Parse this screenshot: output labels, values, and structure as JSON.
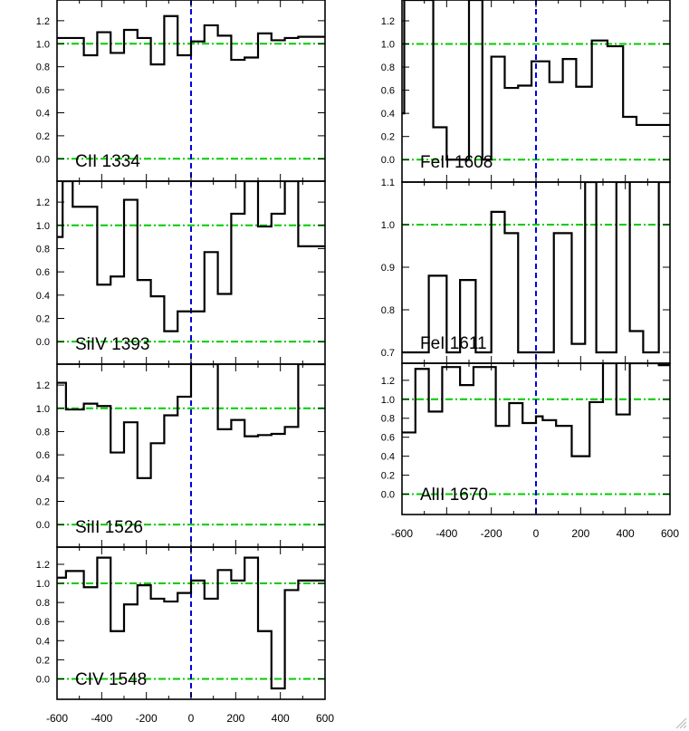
{
  "xaxis": {
    "tick_labels": [
      "-600",
      "-400",
      "-200",
      "0",
      "200",
      "400",
      "600"
    ]
  },
  "colors": {
    "spectrum": "#000000",
    "continuum_line": "#00cc00",
    "zero_velocity_line": "#0000dd",
    "frame": "#000000"
  },
  "chart_data": [
    {
      "type": "line",
      "title": "CII 1334",
      "xlim": [
        -600,
        600
      ],
      "ylim": [
        -0.1,
        1.38
      ],
      "yticks": [
        "0.0",
        "0.2",
        "0.4",
        "0.6",
        "0.8",
        "1.0",
        "1.2"
      ],
      "reference_lines": [
        0.0,
        1.0
      ],
      "x": [
        -600,
        -540,
        -480,
        -420,
        -360,
        -300,
        -240,
        -180,
        -120,
        -60,
        0,
        60,
        120,
        180,
        240,
        300,
        360,
        420,
        480,
        540,
        600
      ],
      "y": [
        1.05,
        1.05,
        0.9,
        1.1,
        0.92,
        1.12,
        1.05,
        0.82,
        1.24,
        0.9,
        1.02,
        1.16,
        1.07,
        0.86,
        0.88,
        1.09,
        1.03,
        1.05,
        1.06,
        1.06,
        1.06
      ]
    },
    {
      "type": "line",
      "title": "SiIV 1393",
      "xlim": [
        -600,
        600
      ],
      "ylim": [
        -0.1,
        1.38
      ],
      "yticks": [
        "0.0",
        "0.2",
        "0.4",
        "0.6",
        "0.8",
        "1.0",
        "1.2"
      ],
      "reference_lines": [
        0.0,
        1.0
      ],
      "x": [
        -600,
        -575,
        -530,
        -480,
        -420,
        -360,
        -300,
        -240,
        -180,
        -120,
        -60,
        0,
        60,
        120,
        180,
        240,
        300,
        360,
        420,
        480,
        540,
        575,
        600
      ],
      "y": [
        0.9,
        1.38,
        1.16,
        1.16,
        0.49,
        0.56,
        1.22,
        0.53,
        0.39,
        0.09,
        0.26,
        0.26,
        0.77,
        0.41,
        1.1,
        1.38,
        0.99,
        1.1,
        1.38,
        0.82,
        0.82,
        0.82,
        0.82
      ]
    },
    {
      "type": "line",
      "title": "SiII 1526",
      "xlim": [
        -600,
        600
      ],
      "ylim": [
        -0.1,
        1.38
      ],
      "yticks": [
        "0.0",
        "0.2",
        "0.4",
        "0.6",
        "0.8",
        "1.0",
        "1.2"
      ],
      "reference_lines": [
        0.0,
        1.0
      ],
      "x": [
        -600,
        -560,
        -480,
        -420,
        -360,
        -300,
        -240,
        -180,
        -120,
        -60,
        0,
        60,
        120,
        180,
        240,
        300,
        360,
        420,
        480,
        540,
        600
      ],
      "y": [
        1.22,
        0.99,
        1.04,
        1.02,
        0.62,
        0.88,
        0.4,
        0.7,
        0.94,
        1.1,
        1.38,
        1.38,
        0.82,
        0.9,
        0.76,
        0.77,
        0.78,
        0.84,
        1.38,
        1.38,
        1.38
      ]
    },
    {
      "type": "line",
      "title": "CIV 1548",
      "xlim": [
        -600,
        600
      ],
      "ylim": [
        -0.1,
        1.38
      ],
      "yticks": [
        "0.0",
        "0.2",
        "0.4",
        "0.6",
        "0.8",
        "1.0",
        "1.2"
      ],
      "reference_lines": [
        0.0,
        1.0
      ],
      "x": [
        -600,
        -560,
        -480,
        -420,
        -360,
        -300,
        -240,
        -180,
        -120,
        -60,
        0,
        60,
        120,
        180,
        240,
        300,
        360,
        420,
        480,
        540,
        600
      ],
      "y": [
        1.06,
        1.13,
        0.96,
        1.27,
        0.5,
        0.78,
        0.98,
        0.84,
        0.81,
        0.9,
        1.03,
        0.84,
        1.14,
        1.03,
        1.27,
        0.5,
        -0.1,
        0.93,
        1.03,
        1.03,
        1.03
      ]
    },
    {
      "type": "line",
      "title": "FeII 1608",
      "xlim": [
        -600,
        600
      ],
      "ylim": [
        -0.1,
        1.38
      ],
      "yticks": [
        "0.0",
        "0.2",
        "0.4",
        "0.6",
        "0.8",
        "1.0",
        "1.2"
      ],
      "reference_lines": [
        0.0,
        1.0
      ],
      "x": [
        -600,
        -590,
        -520,
        -460,
        -400,
        -300,
        -240,
        -200,
        -140,
        -80,
        -20,
        60,
        120,
        180,
        250,
        320,
        390,
        450,
        520,
        600
      ],
      "y": [
        0.4,
        1.38,
        1.38,
        0.28,
        0.0,
        1.38,
        0.0,
        0.89,
        0.62,
        0.64,
        0.85,
        0.67,
        0.87,
        0.63,
        1.03,
        0.98,
        0.37,
        0.3,
        0.3,
        0.3
      ]
    },
    {
      "type": "line",
      "title": "FeI 1611",
      "xlim": [
        -600,
        600
      ],
      "ylim": [
        0.7,
        1.1
      ],
      "yticks": [
        "0.7",
        "0.8",
        "0.9",
        "1.0",
        "1.1"
      ],
      "reference_lines": [
        1.0
      ],
      "x": [
        -600,
        -480,
        -400,
        -340,
        -270,
        -200,
        -140,
        -80,
        0,
        80,
        160,
        220,
        270,
        360,
        420,
        480,
        550,
        600
      ],
      "y": [
        0.7,
        0.88,
        0.7,
        0.87,
        0.7,
        1.03,
        0.98,
        0.7,
        0.7,
        0.98,
        0.72,
        1.1,
        0.7,
        1.1,
        0.75,
        0.7,
        1.1,
        1.1
      ]
    },
    {
      "type": "line",
      "title": "AlII 1670",
      "xlim": [
        -600,
        600
      ],
      "ylim": [
        -0.1,
        1.38
      ],
      "yticks": [
        "0.0",
        "0.2",
        "0.4",
        "0.6",
        "0.8",
        "1.0",
        "1.2"
      ],
      "reference_lines": [
        0.0,
        1.0
      ],
      "x": [
        -600,
        -540,
        -480,
        -420,
        -340,
        -280,
        -180,
        -120,
        -60,
        0,
        30,
        90,
        160,
        240,
        300,
        360,
        420,
        480,
        550,
        600
      ],
      "y": [
        0.65,
        1.32,
        0.87,
        1.34,
        1.15,
        1.34,
        0.72,
        0.96,
        0.75,
        0.82,
        0.78,
        0.72,
        0.4,
        0.97,
        1.38,
        0.84,
        1.38,
        1.38,
        1.36,
        1.36
      ]
    }
  ]
}
